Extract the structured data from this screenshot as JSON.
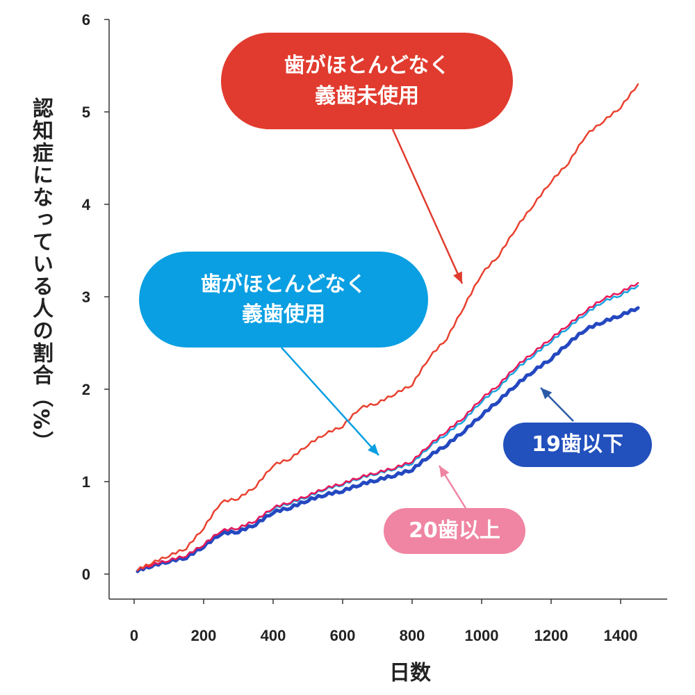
{
  "chart_data": {
    "type": "line",
    "xlabel": "日数",
    "ylabel": "認知症になっている人の割合（%）",
    "xlim": [
      -70,
      1530
    ],
    "ylim": [
      0,
      6
    ],
    "xticks": [
      0,
      200,
      400,
      600,
      800,
      1000,
      1200,
      1400
    ],
    "yticks": [
      0,
      1,
      2,
      3,
      4,
      5,
      6
    ],
    "grid": false,
    "x": [
      10,
      50,
      100,
      150,
      200,
      250,
      300,
      350,
      400,
      450,
      500,
      550,
      600,
      650,
      700,
      750,
      800,
      850,
      900,
      950,
      1000,
      1050,
      1100,
      1150,
      1200,
      1250,
      1300,
      1350,
      1400,
      1450
    ],
    "series": [
      {
        "name": "歯がほとんどなく 義歯未使用",
        "color": "#e8412f",
        "values": [
          0.05,
          0.12,
          0.2,
          0.28,
          0.5,
          0.78,
          0.82,
          0.95,
          1.18,
          1.25,
          1.4,
          1.52,
          1.6,
          1.8,
          1.85,
          1.95,
          2.05,
          2.35,
          2.55,
          2.9,
          3.25,
          3.45,
          3.75,
          4.0,
          4.25,
          4.45,
          4.75,
          4.9,
          5.05,
          5.3
        ]
      },
      {
        "name": "歯がほとんどなく 義歯使用",
        "color": "#1aa3e0",
        "values": [
          0.05,
          0.1,
          0.15,
          0.2,
          0.32,
          0.47,
          0.5,
          0.58,
          0.71,
          0.77,
          0.84,
          0.92,
          0.97,
          1.04,
          1.09,
          1.14,
          1.2,
          1.38,
          1.52,
          1.67,
          1.87,
          2.02,
          2.22,
          2.37,
          2.52,
          2.67,
          2.82,
          2.95,
          3.02,
          3.12
        ]
      },
      {
        "name": "19歯以下",
        "color": "#2448c0",
        "values": [
          0.04,
          0.09,
          0.14,
          0.18,
          0.3,
          0.44,
          0.46,
          0.54,
          0.67,
          0.72,
          0.8,
          0.86,
          0.9,
          0.97,
          1.02,
          1.07,
          1.13,
          1.28,
          1.4,
          1.55,
          1.72,
          1.88,
          2.05,
          2.2,
          2.33,
          2.5,
          2.65,
          2.73,
          2.8,
          2.88
        ]
      },
      {
        "name": "20歯以上",
        "color": "#e8195a",
        "values": [
          0.05,
          0.1,
          0.15,
          0.2,
          0.32,
          0.47,
          0.5,
          0.58,
          0.72,
          0.78,
          0.85,
          0.93,
          0.98,
          1.05,
          1.1,
          1.15,
          1.22,
          1.4,
          1.55,
          1.7,
          1.9,
          2.05,
          2.25,
          2.4,
          2.55,
          2.7,
          2.85,
          2.98,
          3.05,
          3.15
        ]
      }
    ],
    "annotations": {
      "no_denture": [
        "歯がほとんどなく",
        "義歯未使用"
      ],
      "denture": [
        "歯がほとんどなく",
        "義歯使用"
      ],
      "teeth19": "19歯以下",
      "teeth20": "20歯以上"
    },
    "colors": {
      "no_denture_pill": "#e03b2e",
      "denture_pill": "#0a9fe2",
      "teeth19_pill": "#2250bd",
      "teeth20_pill": "#ef85a2"
    }
  }
}
